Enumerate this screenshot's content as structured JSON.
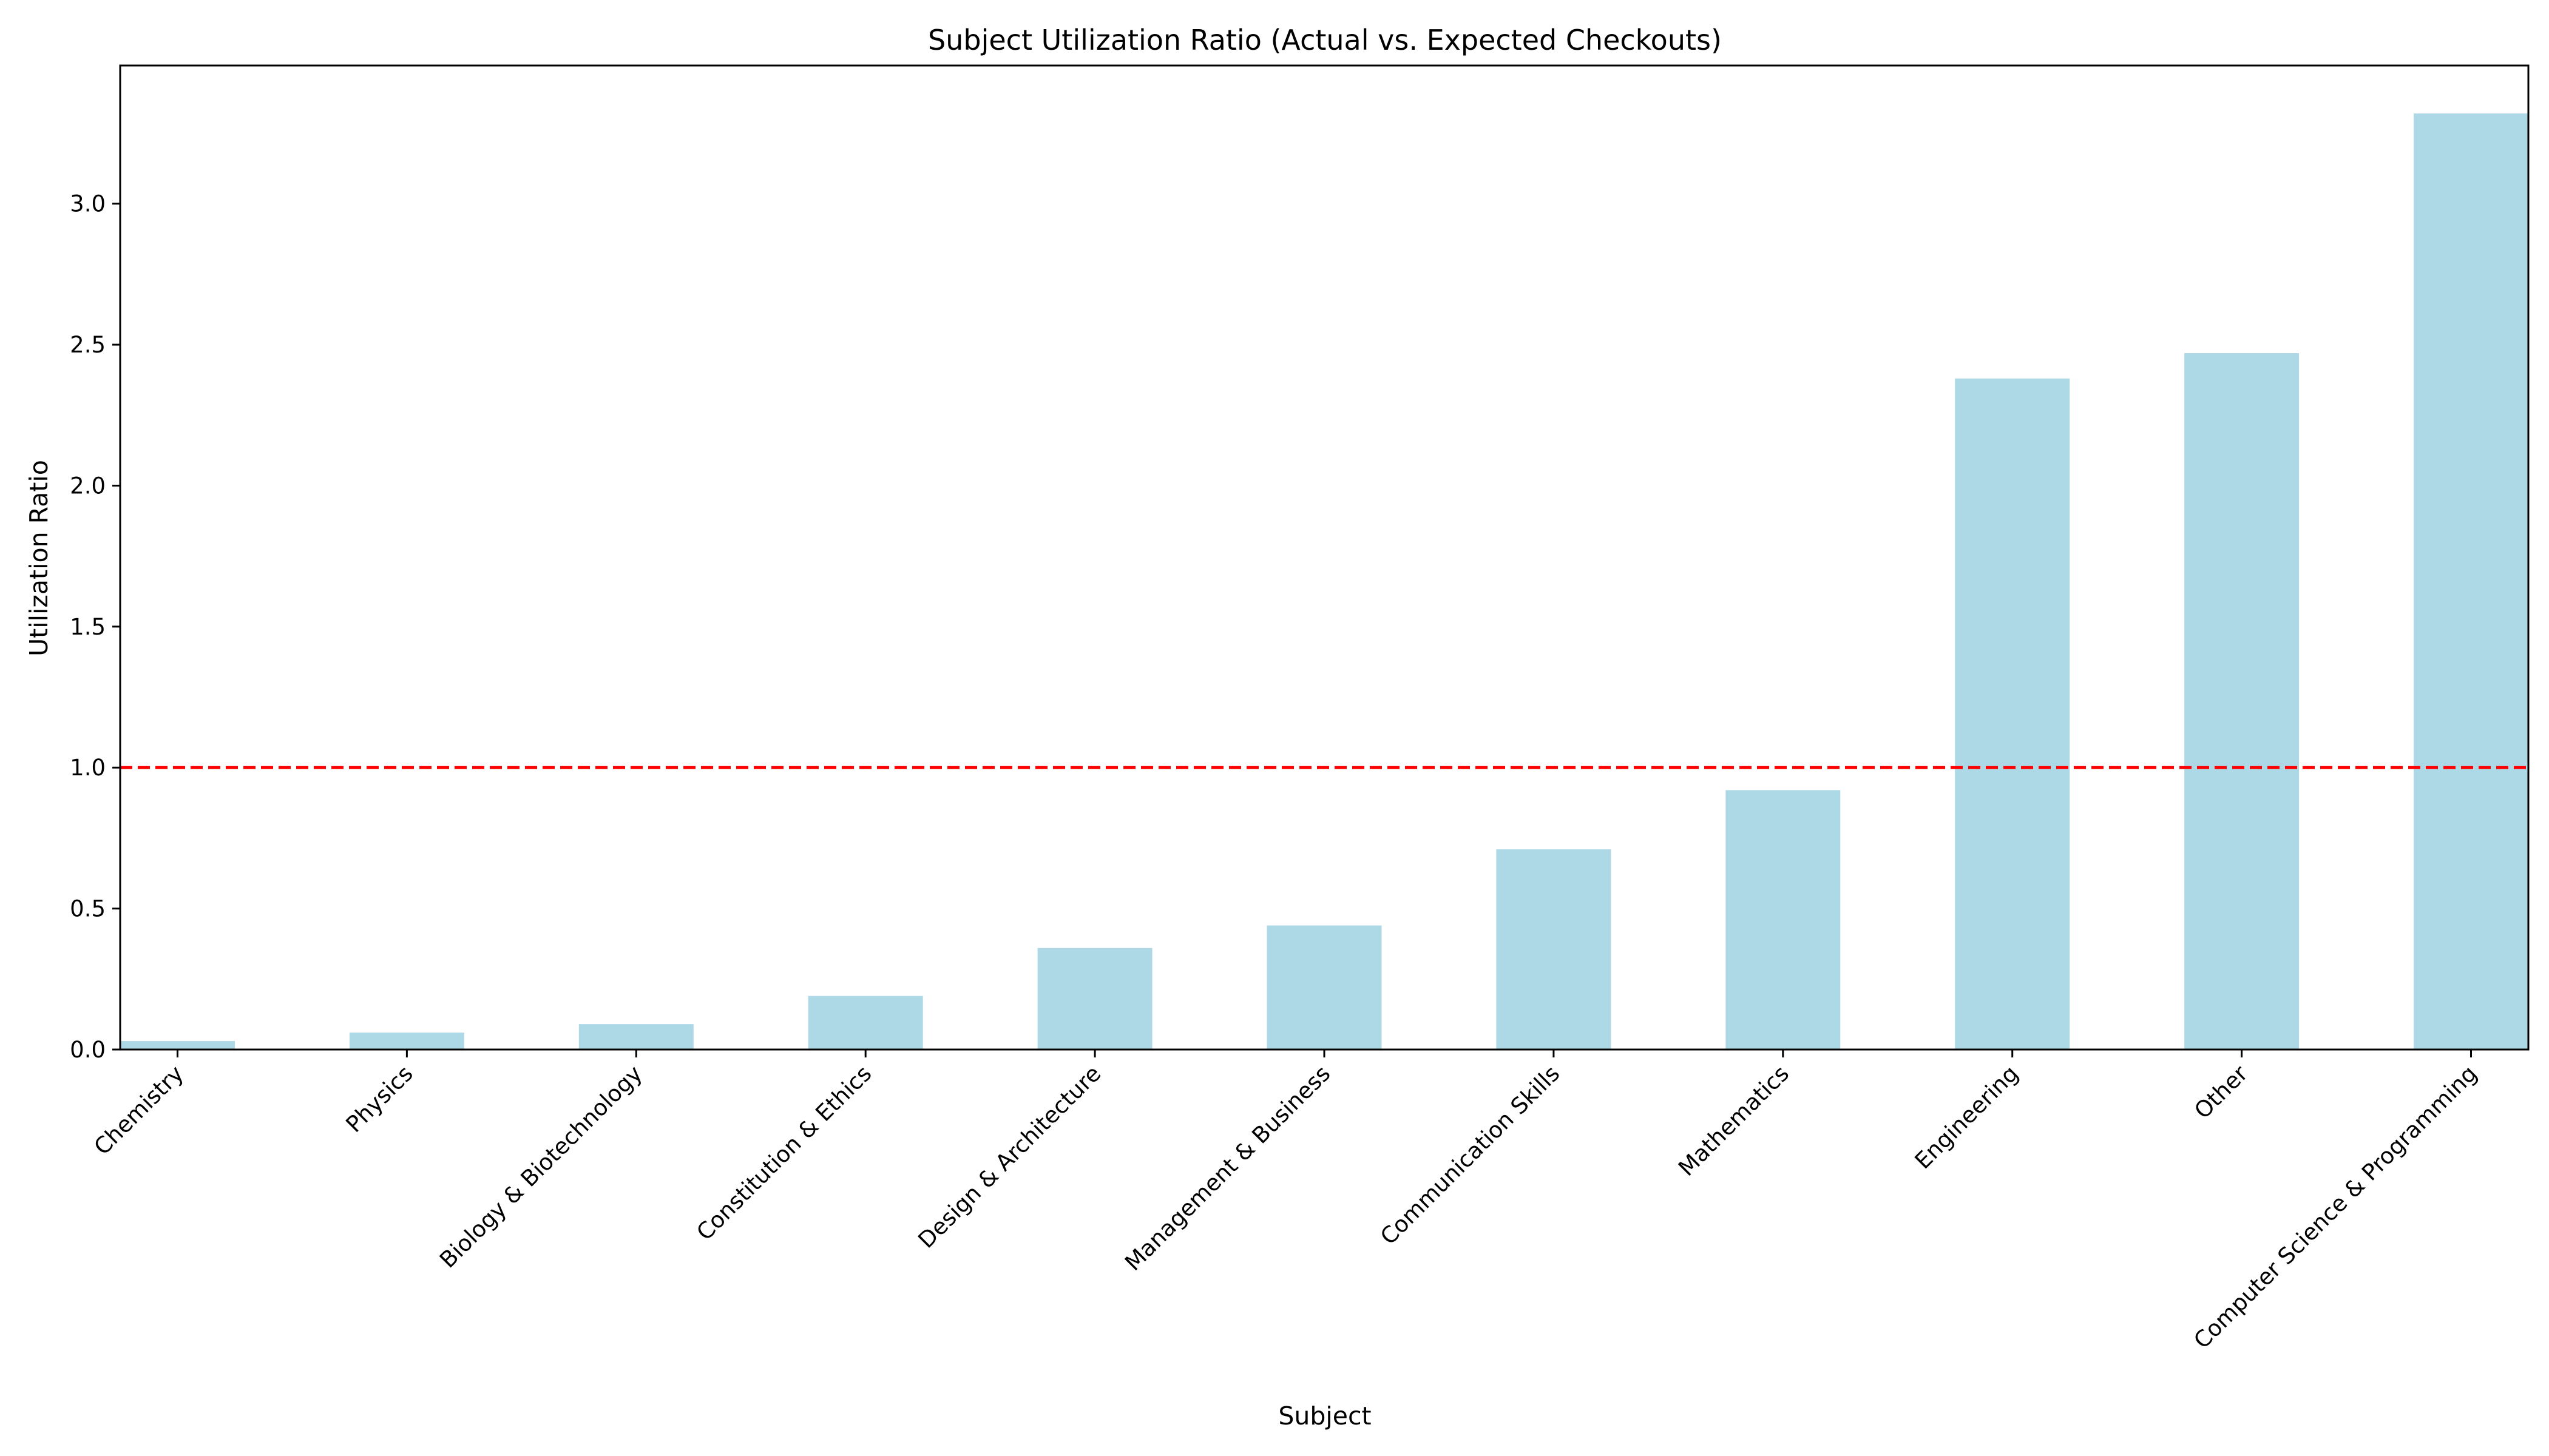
{
  "chart_data": {
    "type": "bar",
    "title": "Subject Utilization Ratio (Actual vs. Expected Checkouts)",
    "xlabel": "Subject",
    "ylabel": "Utilization Ratio",
    "categories": [
      "Chemistry",
      "Physics",
      "Biology & Biotechnology",
      "Constitution & Ethics",
      "Design & Architecture",
      "Management & Business",
      "Communication Skills",
      "Mathematics",
      "Engineering",
      "Other",
      "Computer Science & Programming"
    ],
    "values": [
      0.03,
      0.06,
      0.09,
      0.19,
      0.36,
      0.44,
      0.71,
      0.92,
      2.38,
      2.47,
      3.32
    ],
    "ylim": [
      0,
      3.49
    ],
    "yticks": [
      0.0,
      0.5,
      1.0,
      1.5,
      2.0,
      2.5,
      3.0
    ],
    "ytick_labels": [
      "0.0",
      "0.5",
      "1.0",
      "1.5",
      "2.0",
      "2.5",
      "3.0"
    ],
    "reference_line": {
      "y": 1.0,
      "style": "dashed",
      "color": "#ff0000"
    },
    "bar_color": "#add8e6",
    "grid": false,
    "legend": "none"
  }
}
